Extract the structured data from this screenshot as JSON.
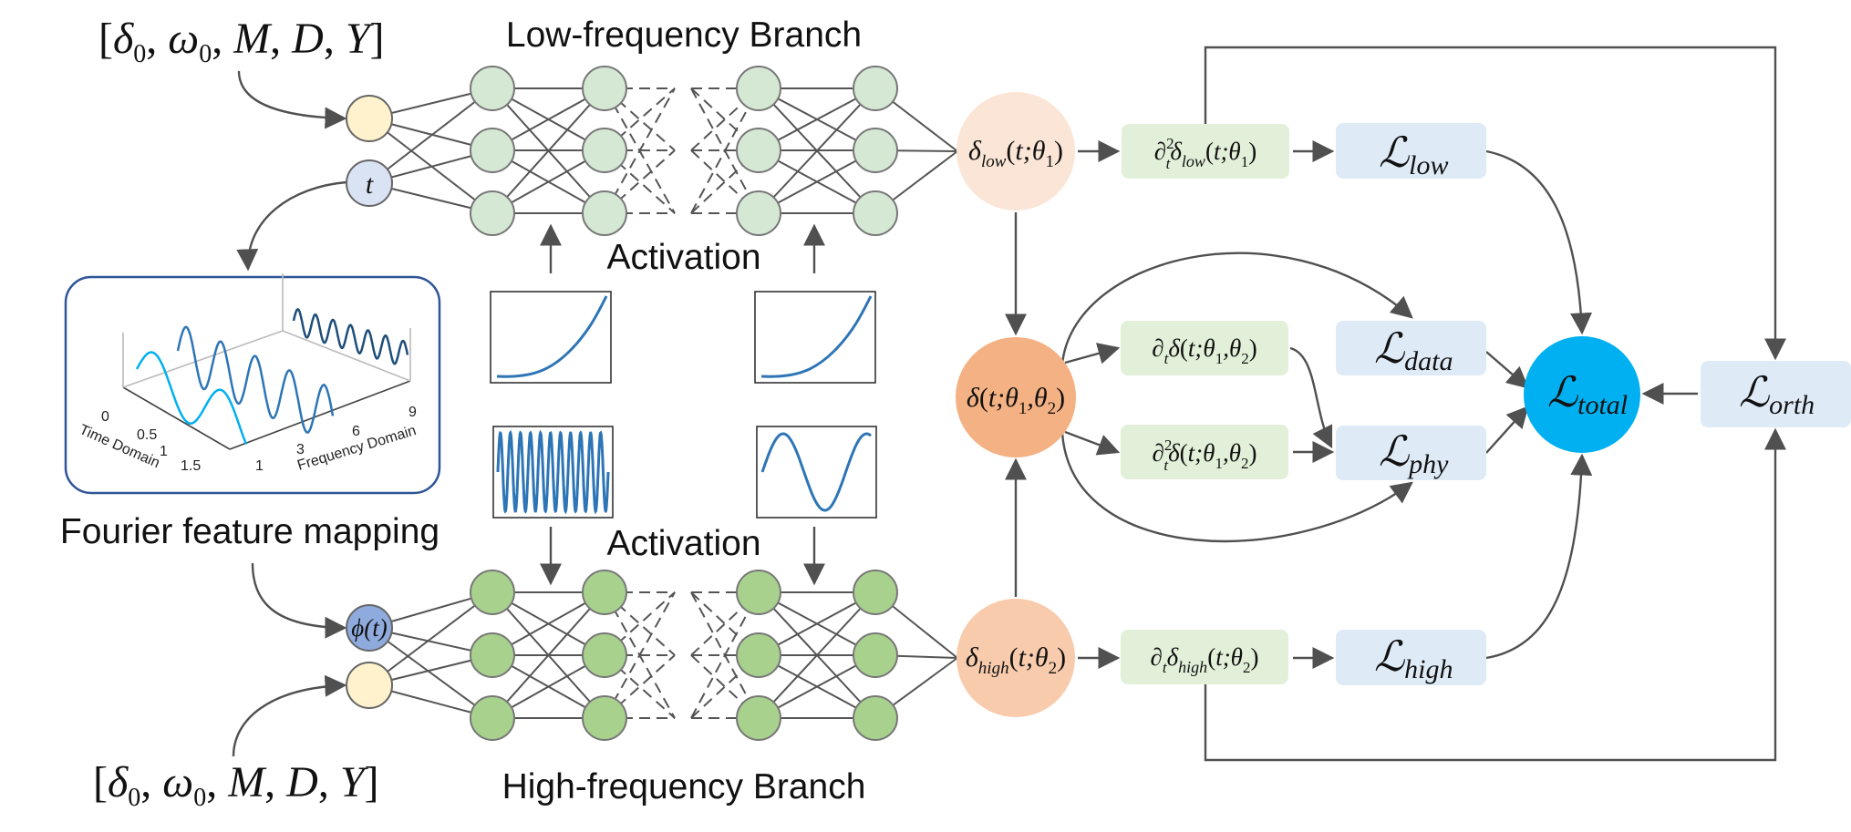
{
  "titles": {
    "low_branch": "Low-frequency Branch",
    "high_branch": "High-frequency Branch",
    "activation_top": "Activation",
    "activation_bottom": "Activation",
    "fourier": "Fourier feature mapping"
  },
  "inputs": {
    "top_params": "[δ₀, ω₀, M, D, Y]",
    "bottom_params": "[δ₀, ω₀, M, D, Y]",
    "t_node": "t",
    "phi_node": "ϕ(t)"
  },
  "fourier_plot": {
    "xaxis_label": "Time Domain",
    "yaxis_label": "Frequency Domain",
    "time_ticks": [
      "0",
      "0.5",
      "1",
      "1.5"
    ],
    "freq_ticks": [
      "1",
      "3",
      "6",
      "9"
    ]
  },
  "nodes": {
    "delta_low": "δ_low(t;θ₁)",
    "delta_total": "δ(t;θ₁,θ₂)",
    "delta_high": "δ_high(t;θ₂)",
    "d2_low": "∂²_t δ_low(t;θ₁)",
    "d1_total": "∂_t δ(t;θ₁,θ₂)",
    "d2_total": "∂²_t δ(t;θ₁,θ₂)",
    "d1_high": "∂_t δ_high(t;θ₂)"
  },
  "losses": {
    "low": "low",
    "data": "data",
    "phy": "phy",
    "high": "high",
    "total": "total",
    "orth": "orth",
    "symbol": "ℒ"
  },
  "colors": {
    "input_yellow": "#FFF2CC",
    "t_blue": "#DAE3F3",
    "phi_blue": "#8FAADC",
    "low_neuron": "#D5E8D4",
    "high_neuron": "#A9D18E",
    "delta_low_fill": "#FBE5D6",
    "delta_total_fill": "#F4B183",
    "delta_high_fill": "#F8CBAD",
    "deriv_box": "#E2F0D9",
    "loss_box": "#DEEBF7",
    "total_circle": "#00B0F0",
    "activation_curve": "#2E75B6"
  }
}
